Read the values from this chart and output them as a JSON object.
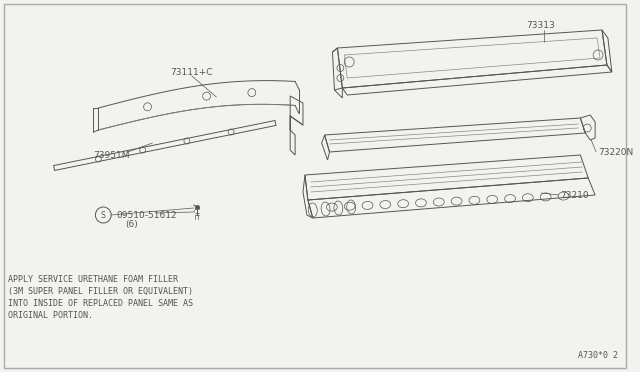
{
  "bg_color": "#f2f2ee",
  "border_color": "#aaaaaa",
  "line_color": "#555555",
  "line_color_light": "#888888",
  "diagram_code": "A730*0 2",
  "note_lines": [
    "APPLY SERVICE URETHANE FOAM FILLER",
    "(3M SUPER PANEL FILLER OR EQUIVALENT)",
    "INTO INSIDE OF REPLACED PANEL SAME AS",
    "ORIGINAL PORTION."
  ],
  "font_size_label": 6.5,
  "font_size_note": 6.0,
  "font_size_code": 6.0
}
